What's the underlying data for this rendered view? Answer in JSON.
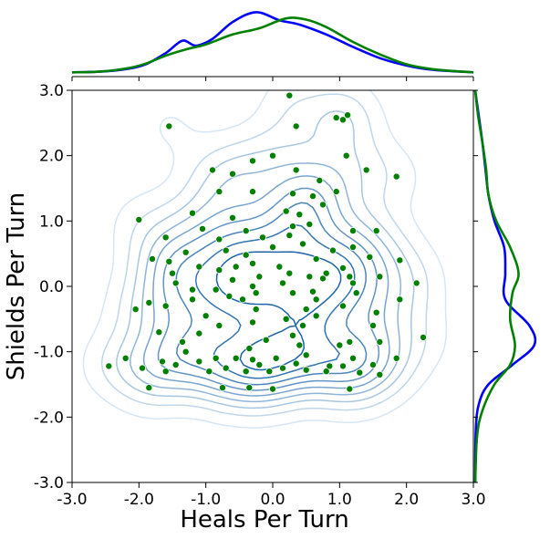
{
  "chart_data": {
    "type": "scatter",
    "title": "",
    "xlabel": "Heals Per Turn",
    "ylabel": "Shields Per Turn",
    "xlim": [
      -3.0,
      3.0
    ],
    "ylim": [
      -3.0,
      3.0
    ],
    "xticks": [
      "-3.0",
      "-2.0",
      "-1.0",
      "0.0",
      "1.0",
      "2.0",
      "3.0"
    ],
    "yticks": [
      "-3.0",
      "-2.0",
      "-1.0",
      "0.0",
      "1.0",
      "2.0",
      "3.0"
    ],
    "grid": false,
    "colors": {
      "points": "#008000",
      "kde_blue": "#0000ff",
      "kde_green": "#008000",
      "contour_light": "#d6e6f4",
      "contour_dark": "#2c73b4"
    },
    "points": [
      [
        0.25,
        2.92
      ],
      [
        1.12,
        2.62
      ],
      [
        -1.55,
        2.45
      ],
      [
        0.35,
        2.45
      ],
      [
        0.95,
        2.58
      ],
      [
        1.05,
        2.55
      ],
      [
        0.0,
        2.0
      ],
      [
        -0.3,
        1.92
      ],
      [
        1.1,
        2.0
      ],
      [
        -0.9,
        1.78
      ],
      [
        -0.6,
        1.72
      ],
      [
        0.35,
        1.78
      ],
      [
        0.7,
        1.62
      ],
      [
        1.4,
        1.78
      ],
      [
        1.85,
        1.68
      ],
      [
        -0.8,
        1.45
      ],
      [
        -0.3,
        1.45
      ],
      [
        0.3,
        1.42
      ],
      [
        0.6,
        1.38
      ],
      [
        0.95,
        1.45
      ],
      [
        -1.2,
        1.12
      ],
      [
        -0.6,
        1.05
      ],
      [
        0.2,
        1.15
      ],
      [
        0.4,
        1.1
      ],
      [
        0.75,
        1.25
      ],
      [
        -2.0,
        1.02
      ],
      [
        -1.05,
        0.88
      ],
      [
        -0.4,
        0.85
      ],
      [
        0.3,
        0.92
      ],
      [
        0.55,
        0.95
      ],
      [
        1.2,
        0.85
      ],
      [
        1.55,
        0.85
      ],
      [
        -1.6,
        0.75
      ],
      [
        -0.8,
        0.72
      ],
      [
        -0.15,
        0.75
      ],
      [
        0.25,
        0.78
      ],
      [
        0.45,
        0.65
      ],
      [
        0.9,
        0.55
      ],
      [
        1.2,
        0.6
      ],
      [
        -1.3,
        0.52
      ],
      [
        -0.7,
        0.55
      ],
      [
        -0.4,
        0.48
      ],
      [
        0.0,
        0.6
      ],
      [
        0.65,
        0.42
      ],
      [
        1.45,
        0.45
      ],
      [
        -1.8,
        0.42
      ],
      [
        -1.55,
        0.38
      ],
      [
        -1.1,
        0.3
      ],
      [
        -0.55,
        0.3
      ],
      [
        -0.3,
        0.35
      ],
      [
        0.1,
        0.3
      ],
      [
        1.05,
        0.28
      ],
      [
        1.9,
        0.4
      ],
      [
        -1.5,
        0.2
      ],
      [
        -0.8,
        0.25
      ],
      [
        -0.2,
        0.15
      ],
      [
        0.25,
        0.2
      ],
      [
        0.55,
        0.15
      ],
      [
        0.8,
        0.2
      ],
      [
        1.15,
        0.15
      ],
      [
        1.6,
        0.15
      ],
      [
        -1.45,
        0.05
      ],
      [
        -0.6,
        0.1
      ],
      [
        -0.3,
        0.0
      ],
      [
        0.15,
        0.05
      ],
      [
        0.75,
        0.12
      ],
      [
        1.2,
        0.05
      ],
      [
        2.15,
        0.05
      ],
      [
        -1.2,
        -0.05
      ],
      [
        -0.85,
        -0.05
      ],
      [
        -0.25,
        -0.1
      ],
      [
        0.3,
        -0.1
      ],
      [
        0.6,
        -0.08
      ],
      [
        1.25,
        -0.1
      ],
      [
        -1.85,
        -0.25
      ],
      [
        -1.2,
        -0.2
      ],
      [
        -0.65,
        -0.15
      ],
      [
        -0.45,
        -0.2
      ],
      [
        0.65,
        -0.2
      ],
      [
        -1.6,
        -0.3
      ],
      [
        -2.05,
        -0.35
      ],
      [
        -0.25,
        -0.35
      ],
      [
        0.5,
        -0.35
      ],
      [
        1.05,
        -0.3
      ],
      [
        1.55,
        -0.4
      ],
      [
        -1.0,
        -0.45
      ],
      [
        -0.3,
        -0.55
      ],
      [
        0.2,
        -0.5
      ],
      [
        0.65,
        -0.45
      ],
      [
        -1.7,
        -0.7
      ],
      [
        -0.8,
        -0.6
      ],
      [
        0.45,
        -0.6
      ],
      [
        1.5,
        -0.6
      ],
      [
        -1.1,
        -0.72
      ],
      [
        0.3,
        -0.75
      ],
      [
        -1.35,
        -0.85
      ],
      [
        1.15,
        -0.85
      ],
      [
        1.6,
        -0.85
      ],
      [
        2.25,
        -0.78
      ],
      [
        -0.35,
        -0.95
      ],
      [
        0.4,
        -0.9
      ],
      [
        1.0,
        -0.9
      ],
      [
        -2.2,
        -1.1
      ],
      [
        -1.65,
        -1.15
      ],
      [
        -1.1,
        -1.15
      ],
      [
        -0.85,
        -1.1
      ],
      [
        -0.55,
        -1.1
      ],
      [
        -0.3,
        -1.12
      ],
      [
        0.05,
        -1.1
      ],
      [
        0.5,
        -1.05
      ],
      [
        1.2,
        -1.1
      ],
      [
        1.85,
        -1.1
      ],
      [
        -2.45,
        -1.22
      ],
      [
        -1.95,
        -1.25
      ],
      [
        -1.45,
        -1.2
      ],
      [
        -0.7,
        -1.25
      ],
      [
        -0.2,
        -1.2
      ],
      [
        0.15,
        -1.25
      ],
      [
        0.35,
        -1.18
      ],
      [
        0.85,
        -1.22
      ],
      [
        1.05,
        -1.22
      ],
      [
        1.5,
        -1.2
      ],
      [
        -1.6,
        -1.3
      ],
      [
        -0.95,
        -1.3
      ],
      [
        -0.4,
        -1.3
      ],
      [
        -0.05,
        -1.3
      ],
      [
        0.5,
        -1.28
      ],
      [
        0.8,
        -1.3
      ],
      [
        1.3,
        -1.32
      ],
      [
        1.6,
        -1.35
      ],
      [
        -1.85,
        -1.55
      ],
      [
        -0.75,
        -1.55
      ],
      [
        -0.35,
        -1.55
      ],
      [
        0.0,
        -1.57
      ],
      [
        1.15,
        -1.57
      ],
      [
        -1.3,
        -1.0
      ],
      [
        1.9,
        -0.2
      ],
      [
        -0.1,
        -0.82
      ]
    ],
    "marginal_x": {
      "blue": [
        [
          -3.0,
          0.01
        ],
        [
          -2.6,
          0.02
        ],
        [
          -2.2,
          0.06
        ],
        [
          -1.9,
          0.14
        ],
        [
          -1.6,
          0.32
        ],
        [
          -1.35,
          0.52
        ],
        [
          -1.15,
          0.44
        ],
        [
          -0.9,
          0.55
        ],
        [
          -0.6,
          0.82
        ],
        [
          -0.25,
          0.98
        ],
        [
          0.1,
          0.85
        ],
        [
          0.4,
          0.78
        ],
        [
          0.8,
          0.62
        ],
        [
          1.2,
          0.42
        ],
        [
          1.6,
          0.24
        ],
        [
          2.0,
          0.12
        ],
        [
          2.4,
          0.05
        ],
        [
          3.0,
          0.01
        ]
      ],
      "green": [
        [
          -3.0,
          0.01
        ],
        [
          -2.6,
          0.02
        ],
        [
          -2.2,
          0.07
        ],
        [
          -1.9,
          0.15
        ],
        [
          -1.6,
          0.28
        ],
        [
          -1.3,
          0.38
        ],
        [
          -1.0,
          0.46
        ],
        [
          -0.6,
          0.62
        ],
        [
          -0.2,
          0.72
        ],
        [
          0.2,
          0.88
        ],
        [
          0.5,
          0.86
        ],
        [
          0.8,
          0.74
        ],
        [
          1.2,
          0.5
        ],
        [
          1.6,
          0.3
        ],
        [
          2.0,
          0.14
        ],
        [
          2.4,
          0.06
        ],
        [
          3.0,
          0.01
        ]
      ]
    },
    "marginal_y": {
      "blue": [
        [
          3.0,
          0.0
        ],
        [
          2.6,
          0.06
        ],
        [
          2.2,
          0.12
        ],
        [
          1.8,
          0.17
        ],
        [
          1.4,
          0.22
        ],
        [
          1.0,
          0.32
        ],
        [
          0.6,
          0.48
        ],
        [
          0.2,
          0.5
        ],
        [
          -0.2,
          0.5
        ],
        [
          -0.6,
          0.9
        ],
        [
          -0.9,
          0.98
        ],
        [
          -1.2,
          0.62
        ],
        [
          -1.5,
          0.22
        ],
        [
          -1.8,
          0.06
        ],
        [
          -2.2,
          0.01
        ],
        [
          -3.0,
          0.0
        ]
      ],
      "green": [
        [
          3.0,
          0.0
        ],
        [
          2.6,
          0.05
        ],
        [
          2.2,
          0.12
        ],
        [
          1.8,
          0.18
        ],
        [
          1.4,
          0.22
        ],
        [
          1.0,
          0.35
        ],
        [
          0.6,
          0.58
        ],
        [
          0.2,
          0.72
        ],
        [
          -0.1,
          0.62
        ],
        [
          -0.5,
          0.58
        ],
        [
          -0.9,
          0.66
        ],
        [
          -1.2,
          0.58
        ],
        [
          -1.5,
          0.32
        ],
        [
          -1.9,
          0.12
        ],
        [
          -2.3,
          0.03
        ],
        [
          -3.0,
          0.0
        ]
      ]
    }
  }
}
